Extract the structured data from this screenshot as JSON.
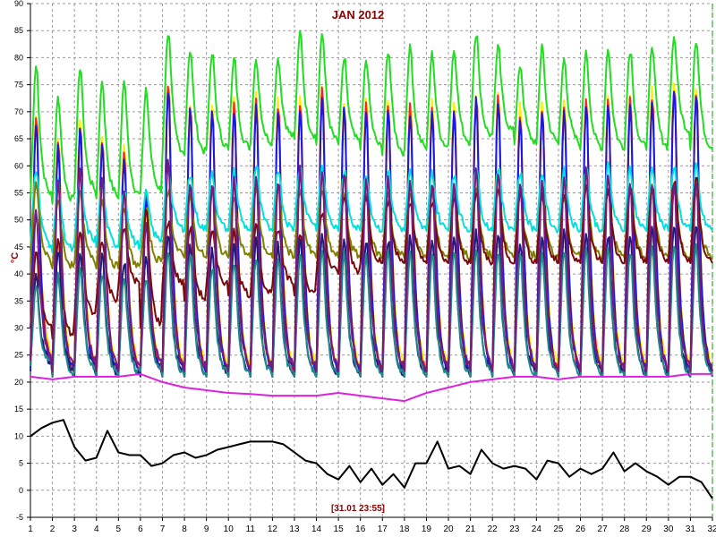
{
  "chart_data": {
    "type": "line",
    "title": "JAN 2012",
    "ylabel": "°C",
    "cursor_label": "[31.01 23:55]",
    "xlim": [
      1,
      32
    ],
    "ylim": [
      -5,
      90
    ],
    "x_ticks": [
      "1",
      "2",
      "3",
      "4",
      "5",
      "6",
      "7",
      "8",
      "9",
      "10",
      "11",
      "12",
      "13",
      "14",
      "15",
      "16",
      "17",
      "18",
      "19",
      "20",
      "21",
      "22",
      "23",
      "24",
      "25",
      "26",
      "27",
      "28",
      "29",
      "30",
      "31",
      "32"
    ],
    "y_ticks": [
      "-5",
      "0",
      "5",
      "10",
      "15",
      "20",
      "25",
      "30",
      "35",
      "40",
      "45",
      "50",
      "55",
      "60",
      "65",
      "70",
      "75",
      "80",
      "85",
      "90"
    ],
    "grid": true,
    "series": [
      {
        "color": "#22dd22",
        "min": [
          54,
          53,
          55,
          54,
          54,
          55,
          62,
          62,
          63,
          63,
          64,
          65,
          65,
          64,
          64,
          63,
          62,
          63,
          63,
          64,
          65,
          66,
          64,
          64,
          64,
          63,
          63,
          63,
          63,
          66,
          63
        ],
        "max": [
          79,
          73,
          79,
          76,
          76,
          74,
          85,
          82,
          81,
          80,
          80,
          80,
          85,
          85,
          80,
          80,
          82,
          82,
          81,
          82,
          85,
          82,
          79,
          82,
          80,
          81,
          82,
          82,
          83,
          84,
          84
        ]
      },
      {
        "color": "#ffee00",
        "min": [
          24,
          22,
          23,
          22,
          22,
          23,
          22,
          22,
          22,
          22,
          22,
          22,
          22,
          22,
          22,
          22,
          22,
          22,
          22,
          22,
          22,
          22,
          22,
          22,
          22,
          22,
          22,
          22,
          22,
          22,
          22
        ],
        "max": [
          71,
          66,
          69,
          66,
          64,
          57,
          77,
          73,
          73,
          73,
          74,
          73,
          74,
          76,
          73,
          73,
          73,
          73,
          73,
          73,
          75,
          75,
          72,
          73,
          73,
          74,
          74,
          74,
          75,
          77,
          76
        ]
      },
      {
        "color": "#ff2222",
        "min": [
          23,
          21,
          22,
          21,
          21,
          22,
          21,
          21,
          21,
          21,
          21,
          21,
          21,
          21,
          21,
          21,
          21,
          21,
          21,
          21,
          21,
          21,
          21,
          21,
          21,
          21,
          21,
          21,
          21,
          21,
          21
        ],
        "max": [
          70,
          65,
          68,
          65,
          63,
          56,
          76,
          72,
          72,
          72,
          73,
          72,
          73,
          75,
          72,
          72,
          72,
          72,
          72,
          72,
          74,
          74,
          71,
          72,
          72,
          73,
          73,
          73,
          74,
          76,
          75
        ]
      },
      {
        "color": "#1a1adc",
        "min": [
          22,
          21,
          21,
          21,
          21,
          21,
          21,
          21,
          21,
          21,
          21,
          21,
          21,
          21,
          21,
          21,
          21,
          21,
          21,
          21,
          21,
          21,
          21,
          21,
          21,
          21,
          21,
          21,
          21,
          21,
          21
        ],
        "max": [
          69,
          64,
          67,
          64,
          62,
          55,
          75,
          71,
          71,
          71,
          72,
          71,
          72,
          74,
          71,
          71,
          71,
          71,
          71,
          71,
          73,
          73,
          70,
          71,
          71,
          72,
          72,
          72,
          73,
          75,
          74
        ]
      },
      {
        "color": "#00e0e0",
        "min": [
          45,
          44,
          46,
          45,
          45,
          46,
          48,
          48,
          48,
          48,
          48,
          48,
          49,
          48,
          48,
          48,
          48,
          48,
          48,
          48,
          48,
          48,
          48,
          48,
          48,
          48,
          48,
          48,
          48,
          48,
          48
        ],
        "max": [
          60,
          57,
          58,
          57,
          56,
          55,
          60,
          59,
          59,
          59,
          60,
          60,
          60,
          60,
          59,
          59,
          59,
          59,
          59,
          59,
          60,
          60,
          59,
          59,
          59,
          60,
          60,
          60,
          60,
          60,
          60
        ]
      },
      {
        "color": "#808000",
        "min": [
          42,
          41,
          42,
          41,
          41,
          42,
          43,
          43,
          43,
          43,
          43,
          43,
          43,
          43,
          43,
          43,
          43,
          43,
          43,
          43,
          43,
          43,
          43,
          43,
          43,
          43,
          43,
          43,
          43,
          43,
          43
        ],
        "max": [
          57,
          54,
          55,
          54,
          53,
          52,
          56,
          55,
          55,
          55,
          56,
          56,
          56,
          56,
          55,
          55,
          55,
          55,
          55,
          55,
          56,
          56,
          55,
          55,
          55,
          56,
          56,
          56,
          56,
          56,
          56
        ]
      },
      {
        "color": "#7a0a0a",
        "min": [
          30,
          28,
          32,
          35,
          38,
          30,
          38,
          35,
          38,
          36,
          36,
          38,
          36,
          40,
          40,
          42,
          42,
          42,
          42,
          42,
          42,
          42,
          42,
          42,
          42,
          42,
          42,
          42,
          42,
          42,
          42
        ],
        "max": [
          44,
          46,
          48,
          47,
          49,
          52,
          50,
          49,
          48,
          48,
          49,
          49,
          48,
          52,
          55,
          55,
          54,
          54,
          54,
          54,
          55,
          56,
          55,
          55,
          55,
          56,
          56,
          56,
          56,
          58,
          58
        ]
      },
      {
        "color": "#1d1d7a",
        "min": [
          23,
          21,
          22,
          21,
          21,
          22,
          21,
          21,
          21,
          21,
          21,
          21,
          21,
          21,
          21,
          21,
          21,
          21,
          21,
          21,
          21,
          21,
          21,
          21,
          21,
          21,
          21,
          21,
          21,
          21,
          21
        ],
        "max": [
          40,
          45,
          44,
          44,
          43,
          44,
          48,
          46,
          45,
          46,
          47,
          46,
          47,
          48,
          47,
          47,
          47,
          47,
          47,
          48,
          48,
          48,
          47,
          47,
          48,
          48,
          48,
          48,
          49,
          50,
          50
        ]
      },
      {
        "color": "#1f8a8a",
        "min": [
          23,
          21,
          22,
          21,
          21,
          22,
          21,
          21,
          21,
          21,
          21,
          21,
          21,
          21,
          21,
          21,
          21,
          21,
          21,
          21,
          21,
          21,
          21,
          21,
          21,
          21,
          21,
          21,
          21,
          21,
          21
        ],
        "max": [
          38,
          40,
          41,
          41,
          40,
          40,
          45,
          44,
          42,
          43,
          44,
          43,
          44,
          45,
          44,
          44,
          45,
          44,
          44,
          45,
          45,
          45,
          44,
          44,
          45,
          45,
          45,
          45,
          46,
          46,
          46
        ]
      },
      {
        "color": "#7a1a7a",
        "min": [
          24,
          22,
          23,
          22,
          22,
          23,
          22,
          22,
          22,
          22,
          22,
          22,
          22,
          22,
          22,
          22,
          22,
          22,
          22,
          22,
          22,
          22,
          22,
          22,
          22,
          22,
          22,
          22,
          22,
          22,
          22
        ],
        "max": [
          52,
          58,
          60,
          58,
          56,
          50,
          62,
          58,
          58,
          58,
          59,
          58,
          60,
          60,
          60,
          58,
          58,
          58,
          58,
          58,
          60,
          60,
          58,
          58,
          58,
          60,
          60,
          58,
          58,
          58,
          58
        ]
      },
      {
        "color": "#dd22dd",
        "values": [
          [
            1,
            21
          ],
          [
            2,
            20.5
          ],
          [
            3,
            21
          ],
          [
            4,
            21
          ],
          [
            5,
            21
          ],
          [
            6,
            21.5
          ],
          [
            7,
            20
          ],
          [
            8,
            19
          ],
          [
            9,
            18.5
          ],
          [
            10,
            18
          ],
          [
            11,
            17.8
          ],
          [
            12,
            17.5
          ],
          [
            13,
            17.5
          ],
          [
            14,
            17.5
          ],
          [
            15,
            18
          ],
          [
            16,
            17.5
          ],
          [
            17,
            17
          ],
          [
            18,
            16.5
          ],
          [
            19,
            18
          ],
          [
            20,
            19
          ],
          [
            21,
            20
          ],
          [
            22,
            20.5
          ],
          [
            23,
            21
          ],
          [
            24,
            21
          ],
          [
            25,
            20.5
          ],
          [
            26,
            21
          ],
          [
            27,
            21
          ],
          [
            28,
            21
          ],
          [
            29,
            21
          ],
          [
            30,
            21
          ],
          [
            31,
            21.5
          ],
          [
            32,
            21.5
          ]
        ]
      },
      {
        "color": "#000000",
        "values": [
          [
            1,
            10
          ],
          [
            1.5,
            11.5
          ],
          [
            2,
            12.5
          ],
          [
            2.5,
            13
          ],
          [
            3,
            8
          ],
          [
            3.5,
            5.5
          ],
          [
            4,
            6
          ],
          [
            4.5,
            11
          ],
          [
            5,
            7
          ],
          [
            5.5,
            6.5
          ],
          [
            6,
            6.5
          ],
          [
            6.5,
            4.5
          ],
          [
            7,
            5
          ],
          [
            7.5,
            6.5
          ],
          [
            8,
            7
          ],
          [
            8.5,
            6
          ],
          [
            9,
            6.5
          ],
          [
            9.5,
            7.5
          ],
          [
            10,
            8
          ],
          [
            10.5,
            8.5
          ],
          [
            11,
            9
          ],
          [
            11.5,
            9
          ],
          [
            12,
            9
          ],
          [
            12.5,
            8.5
          ],
          [
            13,
            7
          ],
          [
            13.5,
            5.5
          ],
          [
            14,
            5
          ],
          [
            14.5,
            3
          ],
          [
            15,
            2
          ],
          [
            15.5,
            4.5
          ],
          [
            16,
            1.5
          ],
          [
            16.5,
            4
          ],
          [
            17,
            1
          ],
          [
            17.5,
            3
          ],
          [
            18,
            0.5
          ],
          [
            18.5,
            5
          ],
          [
            19,
            5
          ],
          [
            19.5,
            9
          ],
          [
            20,
            4
          ],
          [
            20.5,
            4.5
          ],
          [
            21,
            3
          ],
          [
            21.5,
            7.5
          ],
          [
            22,
            5
          ],
          [
            22.5,
            4
          ],
          [
            23,
            4.5
          ],
          [
            23.5,
            4
          ],
          [
            24,
            2
          ],
          [
            24.5,
            5.5
          ],
          [
            25,
            5
          ],
          [
            25.5,
            2.5
          ],
          [
            26,
            4
          ],
          [
            26.5,
            3
          ],
          [
            27,
            4
          ],
          [
            27.5,
            7
          ],
          [
            28,
            3.5
          ],
          [
            28.5,
            5
          ],
          [
            29,
            3.5
          ],
          [
            29.5,
            2.5
          ],
          [
            30,
            1
          ],
          [
            30.5,
            2.5
          ],
          [
            31,
            2.5
          ],
          [
            31.5,
            1.5
          ],
          [
            32,
            -1.5
          ]
        ]
      }
    ]
  }
}
